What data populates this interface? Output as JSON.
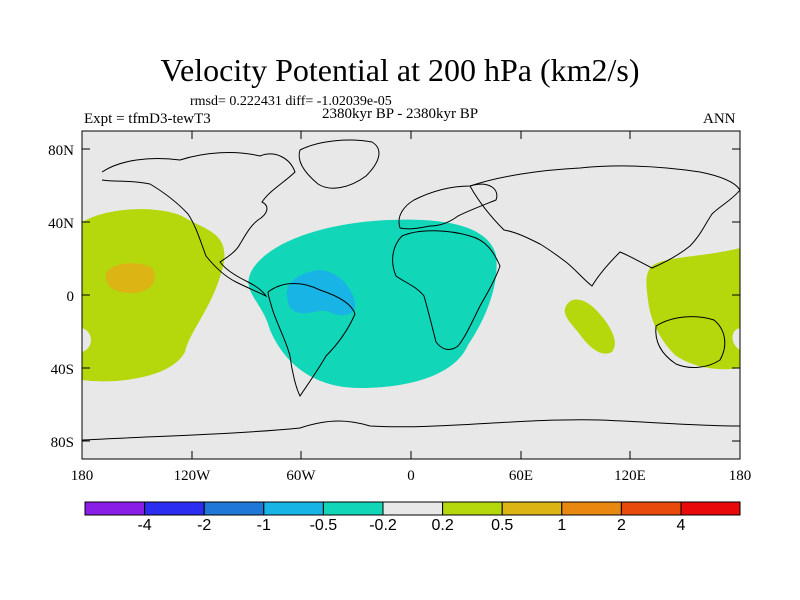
{
  "header": {
    "title": "Velocity Potential at 200 hPa (km2/s)",
    "stats": "rmsd= 0.222431  diff= -1.02039e-05",
    "experiment": "Expt = tfmD3-tewT3",
    "period": "2380kyr BP - 2380kyr BP",
    "season": "ANN"
  },
  "axes": {
    "lat_labels": [
      "80N",
      "40N",
      "0",
      "40S",
      "80S"
    ],
    "lon_labels": [
      "180",
      "120W",
      "60W",
      "0",
      "60E",
      "120E",
      "180"
    ]
  },
  "colorbar": {
    "colors": [
      "#8a1ee6",
      "#2b2ef0",
      "#1f78d8",
      "#18b4e6",
      "#12d6b8",
      "#e8e8e8",
      "#b4d80c",
      "#dcb414",
      "#e88810",
      "#e84a0c",
      "#e80a0a"
    ],
    "labels": [
      "-4",
      "-2",
      "-1",
      "-0.5",
      "-0.2",
      "0.2",
      "0.5",
      "1",
      "2",
      "4"
    ]
  },
  "map": {
    "projection": "cylindrical equidistant",
    "background_color": "#e8e8e8",
    "contour_features": [
      {
        "name": "central-pacific-positive",
        "level": "0.2 to 0.5",
        "color": "#b4d80c"
      },
      {
        "name": "central-pacific-core",
        "level": "0.5 to 1",
        "color": "#dcb414"
      },
      {
        "name": "atlantic-africa-negative",
        "level": "-0.5 to -0.2",
        "color": "#12d6b8"
      },
      {
        "name": "amazon-core",
        "level": "-1 to -0.5",
        "color": "#18b4e6"
      },
      {
        "name": "indian-ocean-positive",
        "level": "0.2 to 0.5",
        "color": "#b4d80c"
      },
      {
        "name": "western-pacific-positive",
        "level": "0.2 to 0.5",
        "color": "#b4d80c"
      }
    ]
  }
}
